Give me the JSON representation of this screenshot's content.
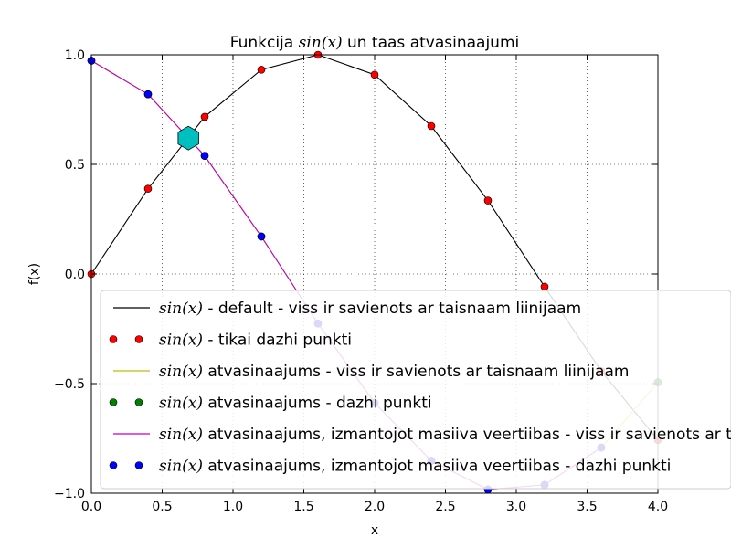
{
  "chart_data": {
    "type": "line",
    "title": {
      "prefix": "Funkcija ",
      "math": "sin(x)",
      "suffix": " un taas atvasinaajumi"
    },
    "xlabel": "x",
    "ylabel": "f(x)",
    "xlim": [
      0.0,
      4.0
    ],
    "ylim": [
      -1.0,
      1.0
    ],
    "xticks": [
      "0.0",
      "0.5",
      "1.0",
      "1.5",
      "2.0",
      "2.5",
      "3.0",
      "3.5",
      "4.0"
    ],
    "yticks": [
      "1.0",
      "0.5",
      "0.0",
      "−0.5",
      "−1.0"
    ],
    "grid": true,
    "legend_position": "lower-left",
    "colors": {
      "black": "#000000",
      "red": "#ff0000",
      "yellow": "#bfbf00",
      "green": "#008000",
      "magenta": "#bf00bf",
      "blue": "#0000ff",
      "marker": "#00bfbf"
    },
    "series": [
      {
        "name_math": "sin(x)",
        "name_text": " - default - viss ir savienots ar taisnaam liinijaam",
        "style": "line",
        "color": "#000000",
        "x": [
          0,
          0.4,
          0.8,
          1.2,
          1.6,
          2.0,
          2.4,
          2.8,
          3.2,
          3.6,
          4.0
        ],
        "y": [
          0.0,
          0.389,
          0.717,
          0.932,
          1.0,
          0.909,
          0.675,
          0.335,
          -0.058,
          -0.443,
          -0.757
        ]
      },
      {
        "name_math": "sin(x)",
        "name_text": " - tikai dazhi punkti",
        "style": "markers",
        "color": "#ff0000",
        "x": [
          0,
          0.4,
          0.8,
          1.2,
          1.6,
          2.0,
          2.4,
          2.8,
          3.2,
          3.6,
          4.0
        ],
        "y": [
          0.0,
          0.389,
          0.717,
          0.932,
          1.0,
          0.909,
          0.675,
          0.335,
          -0.058,
          -0.443,
          -0.757
        ]
      },
      {
        "name_math": "sin(x)",
        "name_text": " atvasinaajums - viss ir savienots ar taisnaam liinijaam",
        "style": "line",
        "color": "#bfbf00",
        "x": [
          0,
          0.4,
          0.8,
          1.2,
          1.6,
          2.0,
          2.4,
          2.8,
          3.2,
          3.6,
          4.0
        ],
        "y": [
          0.973,
          0.82,
          0.539,
          0.171,
          -0.226,
          -0.588,
          -0.852,
          -0.983,
          -0.962,
          -0.792,
          -0.494
        ]
      },
      {
        "name_math": "sin(x)",
        "name_text": " atvasinaajums - dazhi punkti",
        "style": "markers",
        "color": "#008000",
        "x": [
          0,
          0.4,
          0.8,
          1.2,
          1.6,
          2.0,
          2.4,
          2.8,
          3.2,
          3.6,
          4.0
        ],
        "y": [
          0.973,
          0.82,
          0.539,
          0.171,
          -0.226,
          -0.588,
          -0.852,
          -0.983,
          -0.962,
          -0.792,
          -0.494
        ]
      },
      {
        "name_math": "sin(x)",
        "name_text": " atvasinaajums, izmantojot masiiva veertiibas - viss ir savienots ar taisnaam liinijaam",
        "style": "line",
        "color": "#bf00bf",
        "x": [
          0,
          0.4,
          0.8,
          1.2,
          1.6,
          2.0,
          2.4,
          2.8,
          3.2,
          3.6
        ],
        "y": [
          0.973,
          0.82,
          0.539,
          0.171,
          -0.226,
          -0.588,
          -0.852,
          -0.983,
          -0.962,
          -0.792
        ]
      },
      {
        "name_math": "sin(x)",
        "name_text": " atvasinaajums, izmantojot masiiva veertiibas - dazhi punkti",
        "style": "markers",
        "color": "#0000ff",
        "x": [
          0,
          0.4,
          0.8,
          1.2,
          1.6,
          2.0,
          2.4,
          2.8,
          3.2,
          3.6
        ],
        "y": [
          0.973,
          0.82,
          0.539,
          0.171,
          -0.226,
          -0.588,
          -0.852,
          -0.983,
          -0.962,
          -0.792
        ]
      }
    ],
    "annotations": [
      {
        "type": "hexagon-marker",
        "x": 0.685,
        "y": 0.62,
        "color": "#00bfbf"
      }
    ]
  }
}
